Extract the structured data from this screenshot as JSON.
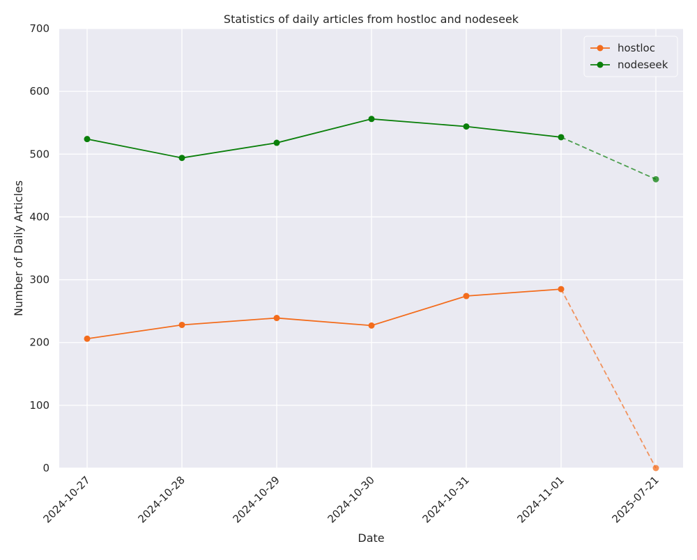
{
  "chart_data": {
    "type": "line",
    "title": "Statistics of daily articles from hostloc and nodeseek",
    "xlabel": "Date",
    "ylabel": "Number of Daily Articles",
    "categories": [
      "2024-10-27",
      "2024-10-28",
      "2024-10-29",
      "2024-10-30",
      "2024-10-31",
      "2024-11-01",
      "2025-07-21"
    ],
    "ylim": [
      0,
      700
    ],
    "yticks": [
      0,
      100,
      200,
      300,
      400,
      500,
      600,
      700
    ],
    "grid": true,
    "legend_position": "top-right",
    "series": [
      {
        "name": "hostloc",
        "color": "#f36c1c",
        "values": [
          206,
          228,
          239,
          227,
          274,
          285,
          0
        ],
        "solid_count": 6
      },
      {
        "name": "nodeseek",
        "color": "#0a7f0a",
        "values": [
          524,
          494,
          518,
          556,
          544,
          527,
          460
        ],
        "solid_count": 6
      }
    ]
  }
}
